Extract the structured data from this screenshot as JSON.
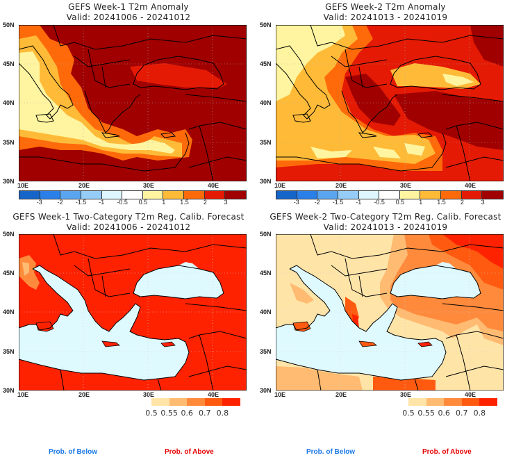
{
  "panels": [
    {
      "title": "GEFS Week-1 T2m Anomaly",
      "valid": "Valid: 20241006 - 20241012",
      "type": "anomaly"
    },
    {
      "title": "GEFS Week-2 T2m Anomaly",
      "valid": "Valid: 20241013 - 20241019",
      "type": "anomaly"
    },
    {
      "title": "GEFS Week-1 Two-Category T2m Reg. Calib. Forecast",
      "valid": "Valid: 20241006 - 20241012",
      "type": "probability"
    },
    {
      "title": "GEFS Week-2 Two-Category T2m Reg. Calib. Forecast",
      "valid": "Valid: 20241013 - 20241019",
      "type": "probability"
    }
  ],
  "axes": {
    "lat_labels": [
      "50N",
      "45N",
      "40N",
      "35N",
      "30N"
    ],
    "lon_labels": [
      "10E",
      "20E",
      "30E",
      "40E"
    ]
  },
  "anomaly_colorbar": {
    "labels": [
      "-3",
      "-2",
      "-1.5",
      "-1",
      "-0.5",
      "0.5",
      "1",
      "1.5",
      "2",
      "3"
    ],
    "colors": [
      "#1565c8",
      "#2a80e8",
      "#5aa5f0",
      "#96cdf8",
      "#def6ff",
      "#ffffff",
      "#fff5a0",
      "#ffbb38",
      "#fe6a0a",
      "#e41a04",
      "#a00000"
    ]
  },
  "probability_colorbar": {
    "labels": [
      "0.5",
      "0.55",
      "0.6",
      "0.7",
      "0.8"
    ],
    "colors": [
      "#ffe4a8",
      "#ffbb72",
      "#ff8a3c",
      "#ff5a10",
      "#ff2200"
    ]
  },
  "sea_color": "#dffaff",
  "footer": {
    "below_label": "Prob. of Below",
    "above_label": "Prob. of Above",
    "below_color": "#1a78e6",
    "above_color": "#e60000"
  }
}
